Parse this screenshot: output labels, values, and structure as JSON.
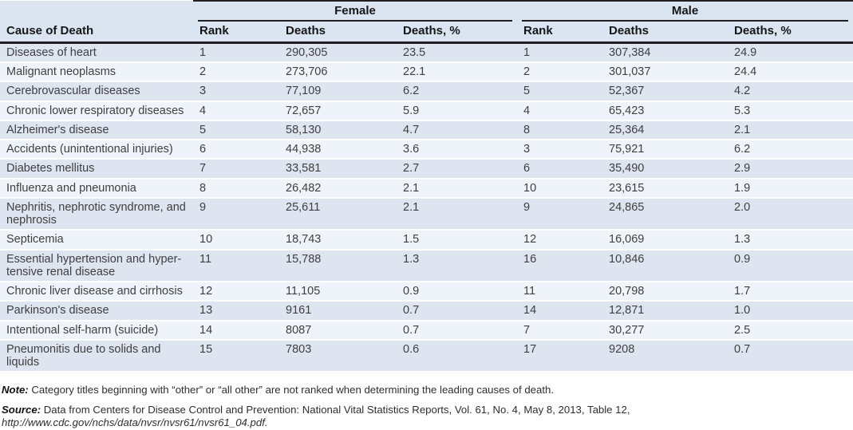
{
  "chart_data": {
    "type": "table",
    "col_groups": [
      "Female",
      "Male"
    ],
    "columns": [
      "Cause of Death",
      "Rank",
      "Deaths",
      "Deaths, %",
      "Rank",
      "Deaths",
      "Deaths, %"
    ],
    "rows": [
      {
        "cause": "Diseases of heart",
        "f_rank": "1",
        "f_deaths": "290,305",
        "f_pct": "23.5",
        "m_rank": "1",
        "m_deaths": "307,384",
        "m_pct": "24.9"
      },
      {
        "cause": "Malignant neoplasms",
        "f_rank": "2",
        "f_deaths": "273,706",
        "f_pct": "22.1",
        "m_rank": "2",
        "m_deaths": "301,037",
        "m_pct": "24.4"
      },
      {
        "cause": "Cerebrovascular diseases",
        "f_rank": "3",
        "f_deaths": "77,109",
        "f_pct": "6.2",
        "m_rank": "5",
        "m_deaths": "52,367",
        "m_pct": "4.2"
      },
      {
        "cause": "Chronic lower respiratory diseases",
        "f_rank": "4",
        "f_deaths": "72,657",
        "f_pct": "5.9",
        "m_rank": "4",
        "m_deaths": "65,423",
        "m_pct": "5.3"
      },
      {
        "cause": "Alzheimer's disease",
        "f_rank": "5",
        "f_deaths": "58,130",
        "f_pct": "4.7",
        "m_rank": "8",
        "m_deaths": "25,364",
        "m_pct": "2.1"
      },
      {
        "cause": "Accidents (unintentional injuries)",
        "f_rank": "6",
        "f_deaths": "44,938",
        "f_pct": "3.6",
        "m_rank": "3",
        "m_deaths": "75,921",
        "m_pct": "6.2"
      },
      {
        "cause": "Diabetes mellitus",
        "f_rank": "7",
        "f_deaths": "33,581",
        "f_pct": "2.7",
        "m_rank": "6",
        "m_deaths": "35,490",
        "m_pct": "2.9"
      },
      {
        "cause": "Influenza and pneumonia",
        "f_rank": "8",
        "f_deaths": "26,482",
        "f_pct": "2.1",
        "m_rank": "10",
        "m_deaths": "23,615",
        "m_pct": "1.9"
      },
      {
        "cause": "Nephritis, nephrotic syndrome, and nephrosis",
        "f_rank": "9",
        "f_deaths": "25,611",
        "f_pct": "2.1",
        "m_rank": "9",
        "m_deaths": "24,865",
        "m_pct": "2.0"
      },
      {
        "cause": "Septicemia",
        "f_rank": "10",
        "f_deaths": "18,743",
        "f_pct": "1.5",
        "m_rank": "12",
        "m_deaths": "16,069",
        "m_pct": "1.3"
      },
      {
        "cause": "Essential hypertension and hyper-tensive renal disease",
        "f_rank": "11",
        "f_deaths": "15,788",
        "f_pct": "1.3",
        "m_rank": "16",
        "m_deaths": "10,846",
        "m_pct": "0.9"
      },
      {
        "cause": "Chronic liver disease and cirrhosis",
        "f_rank": "12",
        "f_deaths": "11,105",
        "f_pct": "0.9",
        "m_rank": "11",
        "m_deaths": "20,798",
        "m_pct": "1.7"
      },
      {
        "cause": "Parkinson's disease",
        "f_rank": "13",
        "f_deaths": "9161",
        "f_pct": "0.7",
        "m_rank": "14",
        "m_deaths": "12,871",
        "m_pct": "1.0"
      },
      {
        "cause": "Intentional self-harm (suicide)",
        "f_rank": "14",
        "f_deaths": "8087",
        "f_pct": "0.7",
        "m_rank": "7",
        "m_deaths": "30,277",
        "m_pct": "2.5"
      },
      {
        "cause": "Pneumonitis due to solids and liquids",
        "f_rank": "15",
        "f_deaths": "7803",
        "f_pct": "0.6",
        "m_rank": "17",
        "m_deaths": "9208",
        "m_pct": "0.7"
      }
    ]
  },
  "notes": {
    "note_label": "Note:",
    "note_text": "Category titles beginning with “other” or “all other” are not ranked when determining the leading causes of death.",
    "source_label": "Source:",
    "source_text": "Data from Centers for Disease Control and Prevention: National Vital Statistics Reports, Vol. 61, No. 4, May 8, 2013, Table 12, ",
    "source_url": "http://www.cdc.gov/nchs/data/nvsr/nvsr61/nvsr61_04.pdf."
  },
  "colors": {
    "header_bg": "#dbe5f1",
    "row_shaded": "#dee4f0",
    "row_light": "#eff3fa",
    "rule": "#231f20"
  }
}
